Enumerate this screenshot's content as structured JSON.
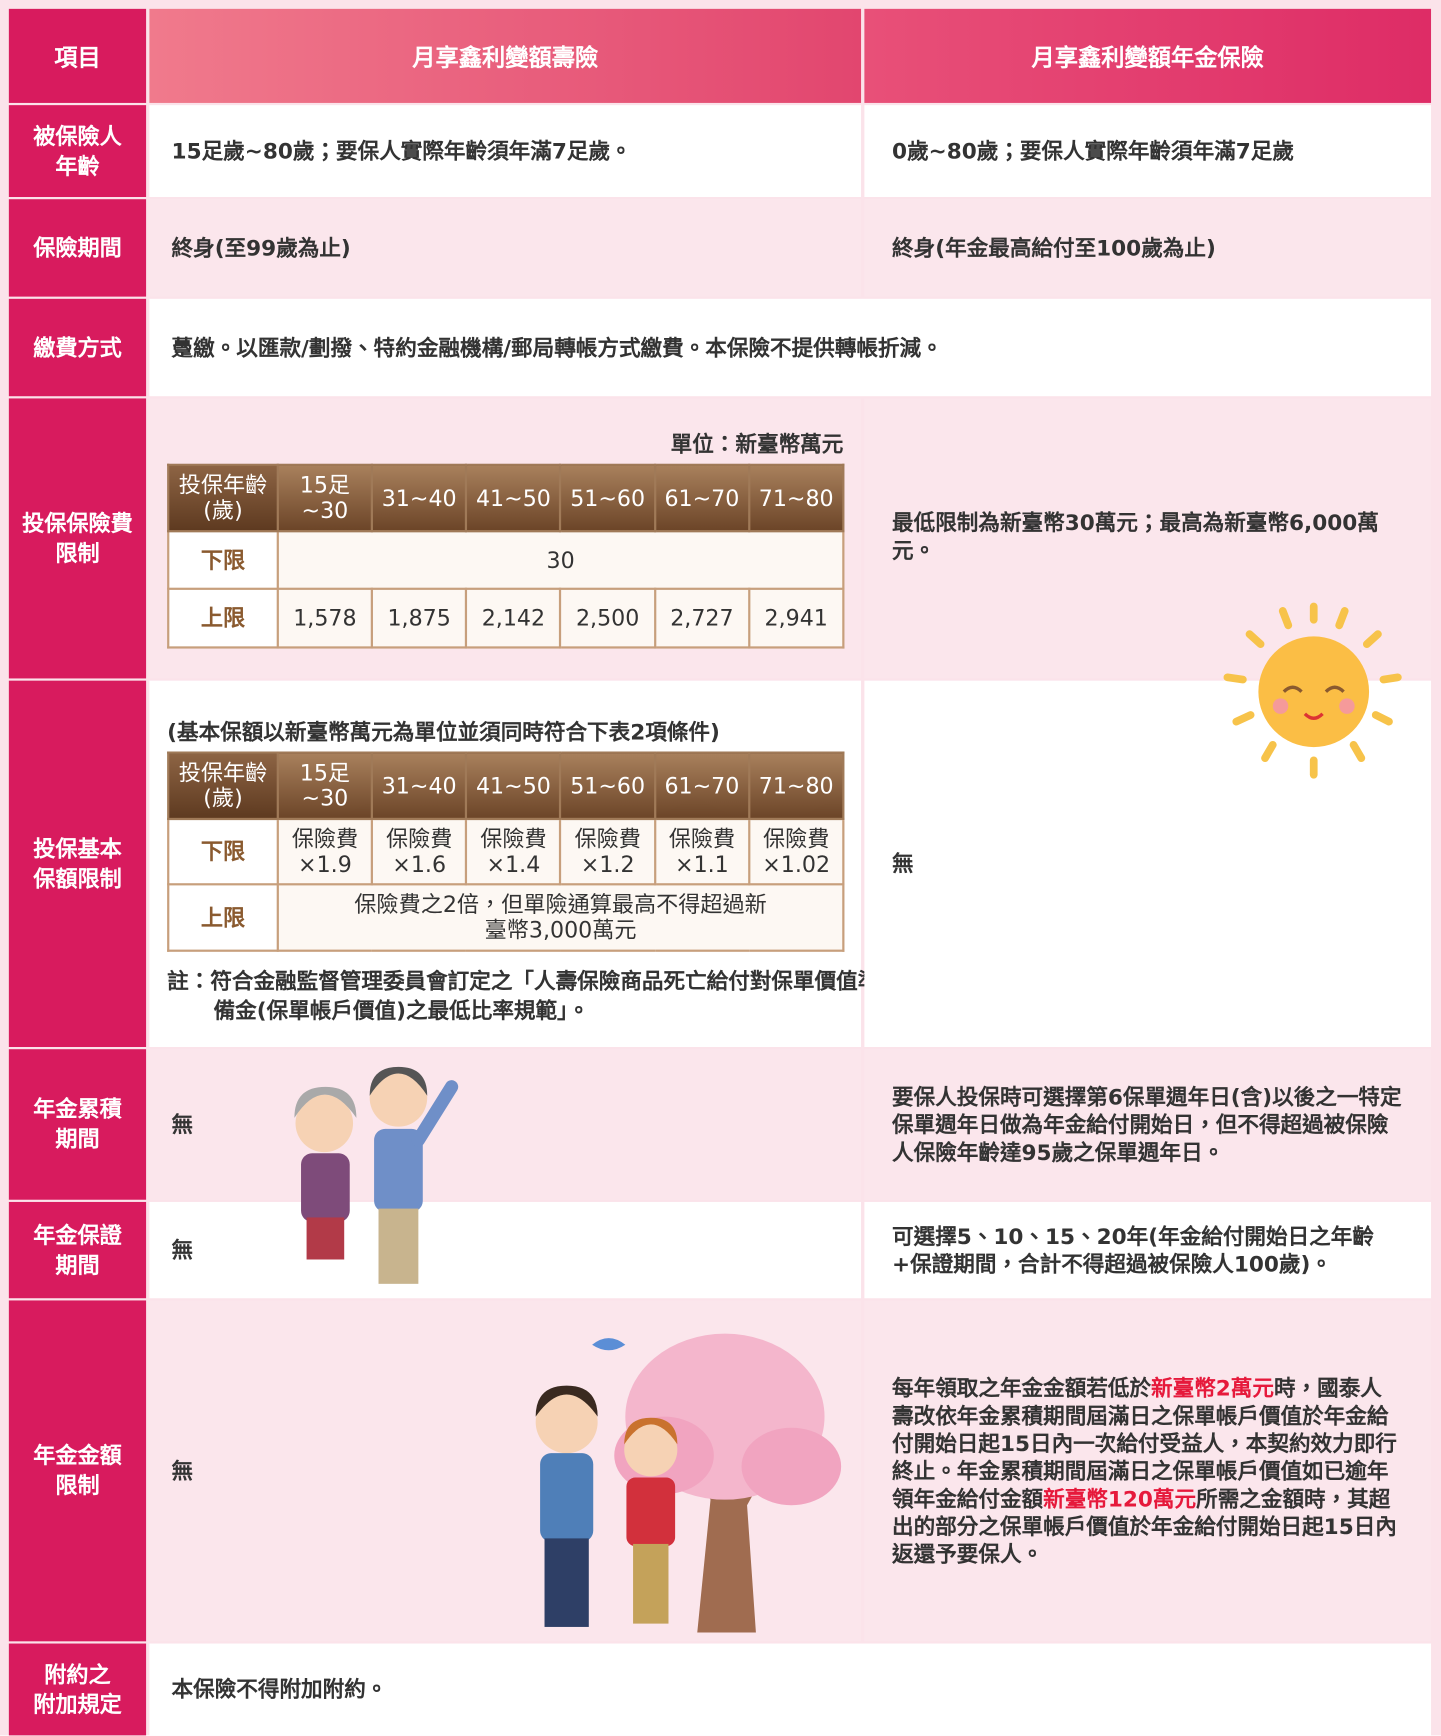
{
  "header": {
    "item": "項目",
    "product_1": "月享鑫利變額壽險",
    "product_2": "月享鑫利變額年金保險"
  },
  "rows": [
    {
      "label": [
        "被保險人",
        "年齡"
      ],
      "col1": "15足歲~80歲；要保人實際年齡須年滿7足歲。",
      "col2": "0歲~80歲；要保人實際年齡須年滿7足歲"
    },
    {
      "label": [
        "保險期間"
      ],
      "col1": "終身(至99歲為止)",
      "col2": "終身(年金最高給付至100歲為止)"
    },
    {
      "label": [
        "繳費方式"
      ],
      "both": "躉繳。以匯款/劃撥、特約金融機構/郵局轉帳方式繳費。本保險不提供轉帳折減。"
    },
    {
      "label": [
        "投保保險費",
        "限制"
      ],
      "col1": {
        "unit": "單位：新臺幣萬元",
        "table": {
          "header": [
            [
              "投保年齡",
              "(歲)"
            ],
            "15足~30",
            "31~40",
            "41~50",
            "51~60",
            "61~70",
            "71~80"
          ],
          "lower_label": "下限",
          "lower": "30",
          "upper_label": "上限",
          "upper": [
            "1,578",
            "1,875",
            "2,142",
            "2,500",
            "2,727",
            "2,941"
          ]
        }
      },
      "col2": "最低限制為新臺幣30萬元；最高為新臺幣6,000萬元。"
    },
    {
      "label": [
        "投保基本",
        "保額限制"
      ],
      "col1": {
        "intro": "(基本保額以新臺幣萬元為單位並須同時符合下表2項條件)",
        "table": {
          "header": [
            [
              "投保年齡",
              "(歲)"
            ],
            "15足~30",
            "31~40",
            "41~50",
            "51~60",
            "61~70",
            "71~80"
          ],
          "lower_label": "下限",
          "lower": [
            [
              "保險費",
              "×1.9"
            ],
            [
              "保險費",
              "×1.6"
            ],
            [
              "保險費",
              "×1.4"
            ],
            [
              "保險費",
              "×1.2"
            ],
            [
              "保險費",
              "×1.1"
            ],
            [
              "保險費",
              "×1.02"
            ]
          ],
          "upper_label": "上限",
          "upper": "保險費之2倍，但單險通算最高不得超過新臺幣3,000萬元"
        },
        "footnote": "註：符合金融監督管理委員會訂定之「人壽保險商品死亡給付對保單價值準備金(保單帳戶價值)之最低比率規範」。"
      },
      "col2": "無"
    },
    {
      "label": [
        "年金累積",
        "期間"
      ],
      "col1": "無",
      "col2": "要保人投保時可選擇第6保單週年日(含)以後之一特定保單週年日做為年金給付開始日，但不得超過被保險人保險年齡達95歲之保單週年日。"
    },
    {
      "label": [
        "年金保證",
        "期間"
      ],
      "col1": "無",
      "col2": "可選擇5、10、15、20年(年金給付開始日之年齡+保證期間，合計不得超過被保險人100歲)。"
    },
    {
      "label": [
        "年金金額",
        "限制"
      ],
      "col1": "無",
      "col2": [
        {
          "text": "每年領取之年金金額若低於",
          "highlight": false
        },
        {
          "text": "新臺幣2萬元",
          "highlight": true
        },
        {
          "text": "時，國泰人壽改依年金累積期間屆滿日之保單帳戶價值於年金給付開始日起15日內一次給付受益人，本契約效力即行終止。年金累積期間屆滿日之保單帳戶價值如已逾年領年金給付金額",
          "highlight": false
        },
        {
          "text": "新臺幣120萬元",
          "highlight": true
        },
        {
          "text": "所需之金額時，其超出的部分之保單帳戶價值於年金給付開始日起15日內返還予要保人。",
          "highlight": false
        }
      ]
    },
    {
      "label": [
        "附約之",
        "附加規定"
      ],
      "both": "本保險不得附加附約。"
    }
  ]
}
